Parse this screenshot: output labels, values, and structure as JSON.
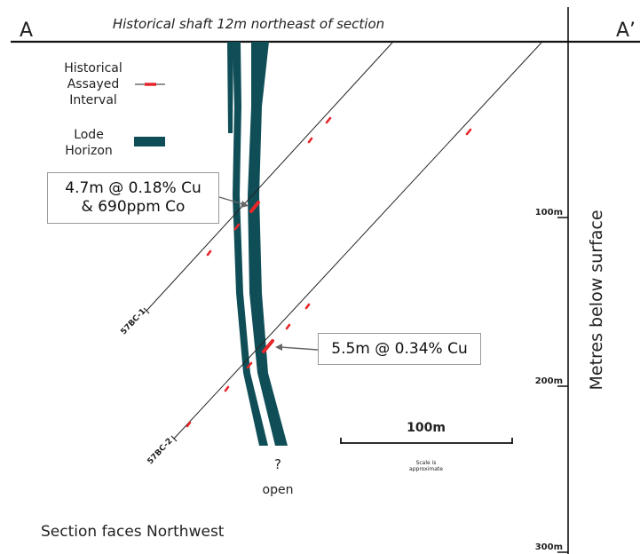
{
  "section": {
    "start_label": "A",
    "end_label": "A’",
    "shaft_note": "Historical shaft 12m northeast of section",
    "orientation_note": "Section faces Northwest"
  },
  "legend": {
    "assay_line1": "Historical",
    "assay_line2": "Assayed",
    "assay_line3": "Interval",
    "lode_line1": "Lode",
    "lode_line2": "Horizon",
    "assay_color": "#e8262a",
    "lode_color": "#0f4e57"
  },
  "drillholes": [
    {
      "id": "57BC-1"
    },
    {
      "id": "57BC-2"
    }
  ],
  "intercepts": {
    "hole1_line1": "4.7m @ 0.18% Cu",
    "hole1_line2": "& 690ppm Co",
    "hole2": "5.5m @ 0.34% Cu"
  },
  "lode_note": {
    "mark": "?",
    "label": "open"
  },
  "scale_bar": {
    "label": "100m",
    "note_line1": "Scale is",
    "note_line2": "approximate"
  },
  "depth_axis": {
    "title": "Metres below surface",
    "ticks": [
      "100m",
      "200m",
      "300m"
    ]
  }
}
